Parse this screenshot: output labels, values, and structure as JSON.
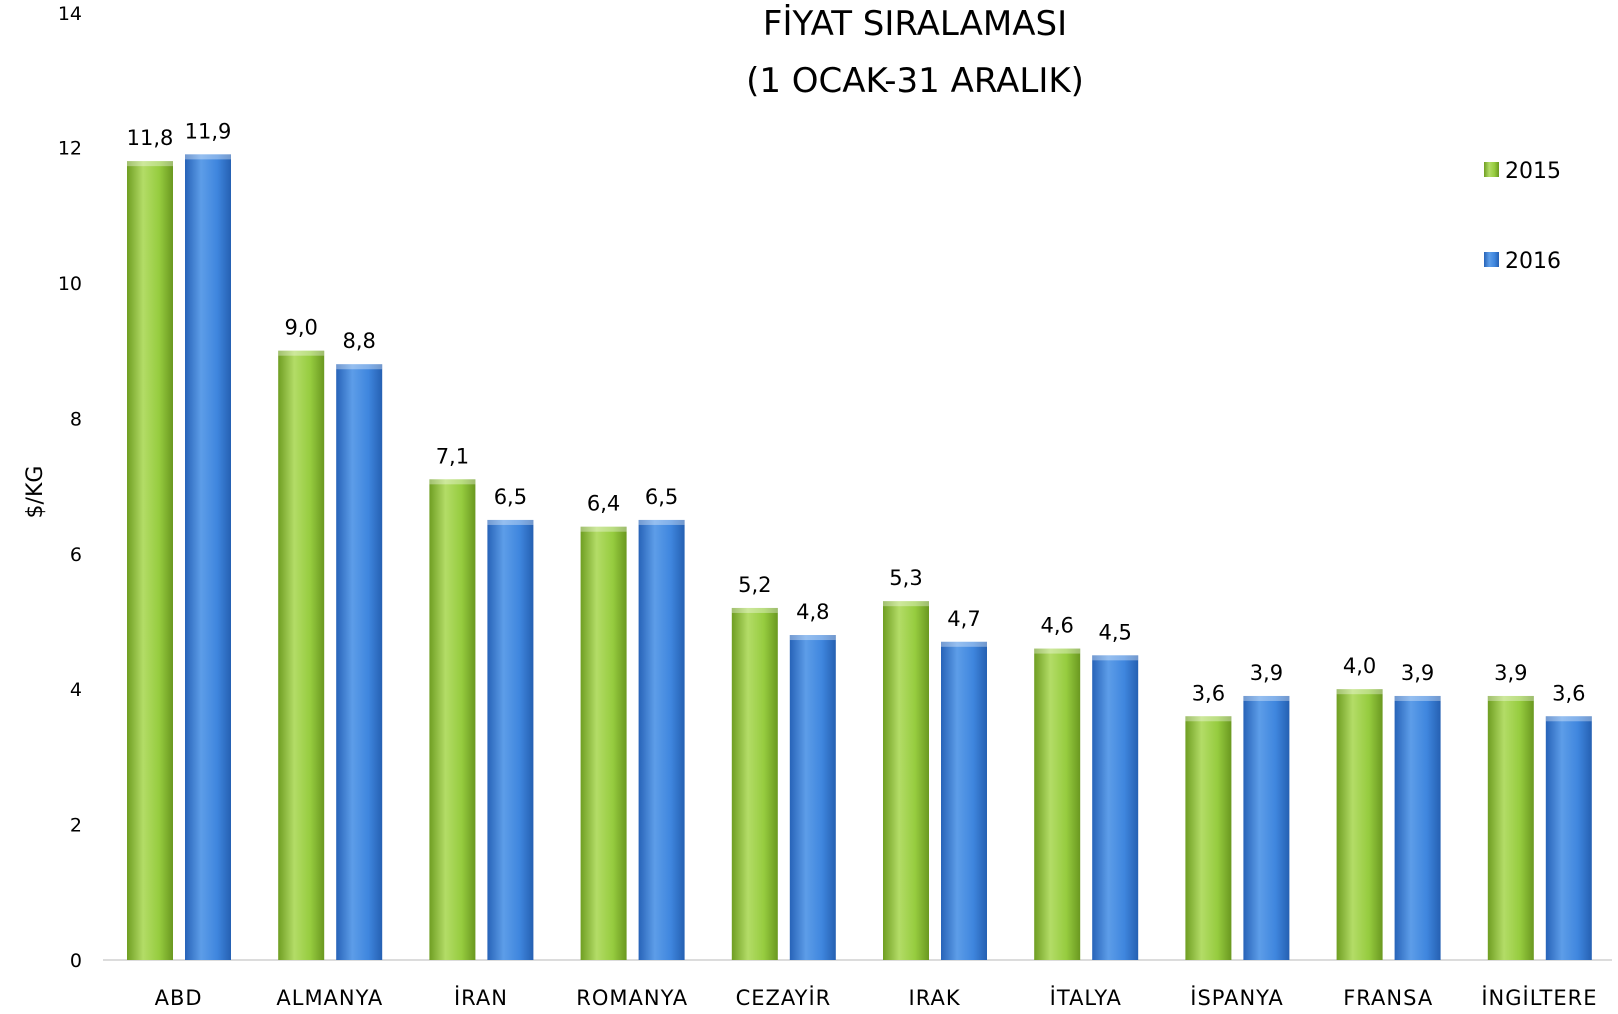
{
  "chart_data": {
    "type": "bar",
    "title": "FİYAT SIRALAMASI",
    "subtitle": "(1 OCAK-31 ARALIK)",
    "xlabel": "",
    "ylabel": "$/KG",
    "ylim": [
      0,
      14
    ],
    "yticks": [
      "0",
      "2",
      "4",
      "6",
      "8",
      "10",
      "12",
      "14"
    ],
    "grid": false,
    "legend_position": "right",
    "categories": [
      "ABD",
      "ALMANYA",
      "İRAN",
      "ROMANYA",
      "CEZAYİR",
      "IRAK",
      "İTALYA",
      "İSPANYA",
      "FRANSA",
      "İNGİLTERE"
    ],
    "series": [
      {
        "name": "2015",
        "color": "#8dc63f",
        "values": [
          11.8,
          9.0,
          7.1,
          6.4,
          5.2,
          5.3,
          4.6,
          3.6,
          4.0,
          3.9
        ],
        "labels": [
          "11,8",
          "9,0",
          "7,1",
          "6,4",
          "5,2",
          "5,3",
          "4,6",
          "3,6",
          "4,0",
          "3,9"
        ]
      },
      {
        "name": "2016",
        "color": "#3a7fd5",
        "values": [
          11.9,
          8.8,
          6.5,
          6.5,
          4.8,
          4.7,
          4.5,
          3.9,
          3.9,
          3.6
        ],
        "labels": [
          "11,9",
          "8,8",
          "6,5",
          "6,5",
          "4,8",
          "4,7",
          "4,5",
          "3,9",
          "3,9",
          "3,6"
        ]
      }
    ]
  }
}
